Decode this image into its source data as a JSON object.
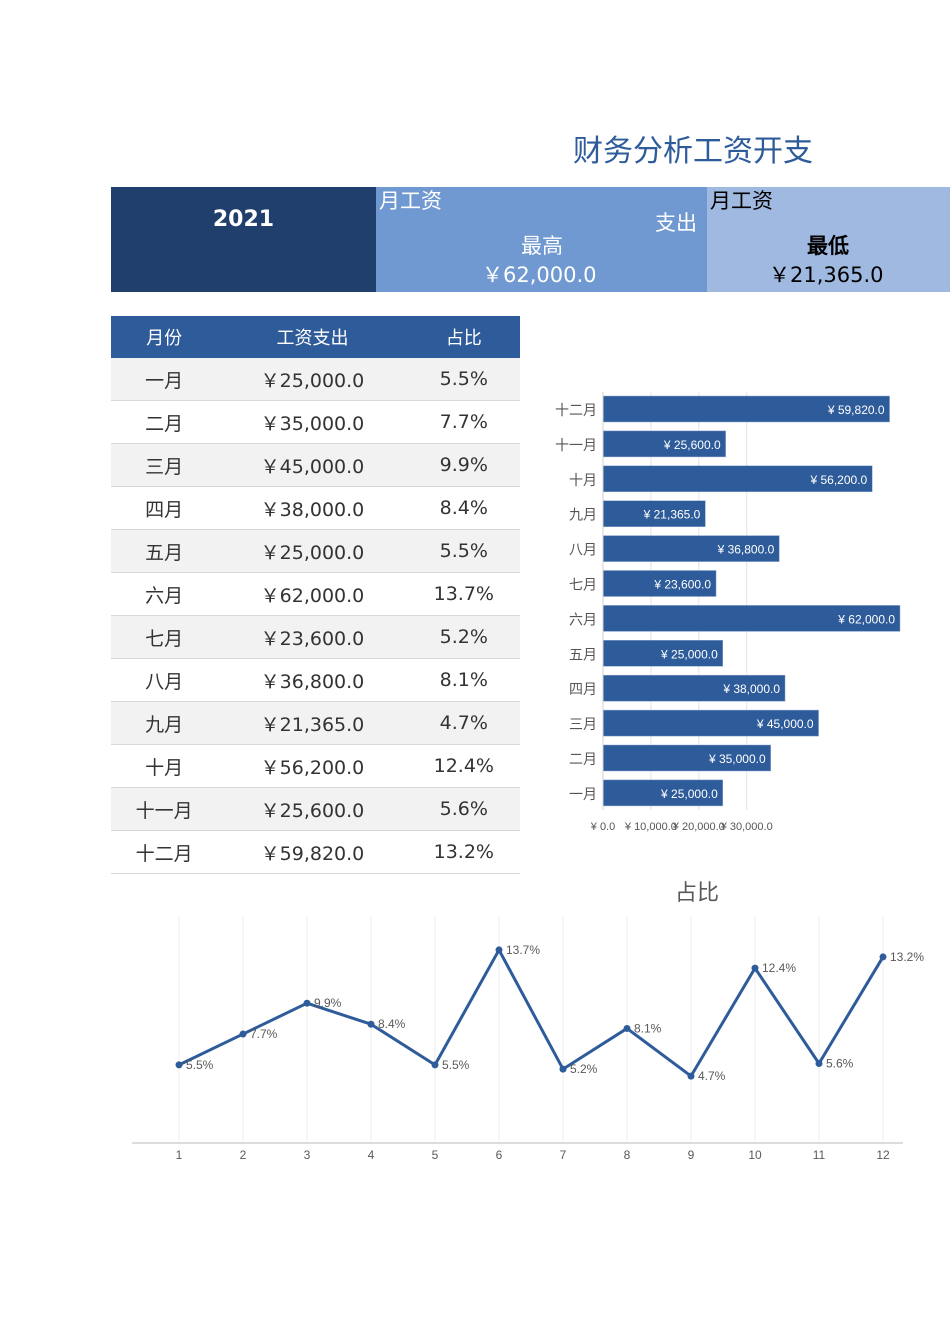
{
  "title": "财务分析工资开支",
  "kpi": {
    "year": "2021",
    "high": {
      "label1": "月工资",
      "label2": "支出",
      "label3": "最高",
      "value": "￥62,000.0"
    },
    "low": {
      "label1": "月工资",
      "label3": "最低",
      "value": "￥21,365.0"
    }
  },
  "table": {
    "headers": [
      "月份",
      "工资支出",
      "占比"
    ],
    "rows": [
      [
        "一月",
        "￥25,000.0",
        "5.5%"
      ],
      [
        "二月",
        "￥35,000.0",
        "7.7%"
      ],
      [
        "三月",
        "￥45,000.0",
        "9.9%"
      ],
      [
        "四月",
        "￥38,000.0",
        "8.4%"
      ],
      [
        "五月",
        "￥25,000.0",
        "5.5%"
      ],
      [
        "六月",
        "￥62,000.0",
        "13.7%"
      ],
      [
        "七月",
        "￥23,600.0",
        "5.2%"
      ],
      [
        "八月",
        "￥36,800.0",
        "8.1%"
      ],
      [
        "九月",
        "￥21,365.0",
        "4.7%"
      ],
      [
        "十月",
        "￥56,200.0",
        "12.4%"
      ],
      [
        "十一月",
        "￥25,600.0",
        "5.6%"
      ],
      [
        "十二月",
        "￥59,820.0",
        "13.2%"
      ]
    ]
  },
  "colors": {
    "accent": "#2e5b9a",
    "dark": "#203f6c",
    "mid": "#7098d1",
    "light": "#a0b9e0"
  },
  "chart_data": [
    {
      "type": "bar",
      "orientation": "horizontal",
      "categories": [
        "一月",
        "二月",
        "三月",
        "四月",
        "五月",
        "六月",
        "七月",
        "八月",
        "九月",
        "十月",
        "十一月",
        "十二月"
      ],
      "values": [
        25000,
        35000,
        45000,
        38000,
        25000,
        62000,
        23600,
        36800,
        21365,
        56200,
        25600,
        59820
      ],
      "labels": [
        "¥ 25,000.0",
        "¥ 35,000.0",
        "¥ 45,000.0",
        "¥ 38,000.0",
        "¥ 25,000.0",
        "¥ 62,000.0",
        "¥ 23,600.0",
        "¥ 36,800.0",
        "¥ 21,365.0",
        "¥ 56,200.0",
        "¥ 25,600.0",
        "¥ 59,820.0"
      ],
      "xticks": [
        0,
        10000,
        20000,
        30000
      ],
      "xtick_labels": [
        "¥ 0.0",
        "¥ 10,000.0",
        "¥ 20,000.0",
        "¥ 30,000.0"
      ],
      "grid": true,
      "color": "#2e5b9a"
    },
    {
      "type": "line",
      "title": "占比",
      "x": [
        1,
        2,
        3,
        4,
        5,
        6,
        7,
        8,
        9,
        10,
        11,
        12
      ],
      "values": [
        5.5,
        7.7,
        9.9,
        8.4,
        5.5,
        13.7,
        5.2,
        8.1,
        4.7,
        12.4,
        5.6,
        13.2
      ],
      "labels": [
        "5.5%",
        "7.7%",
        "9.9%",
        "8.4%",
        "5.5%",
        "13.7%",
        "5.2%",
        "8.1%",
        "4.7%",
        "12.4%",
        "5.6%",
        "13.2%"
      ],
      "ylim": [
        0,
        16
      ],
      "grid": true,
      "color": "#2e5b9a"
    }
  ]
}
